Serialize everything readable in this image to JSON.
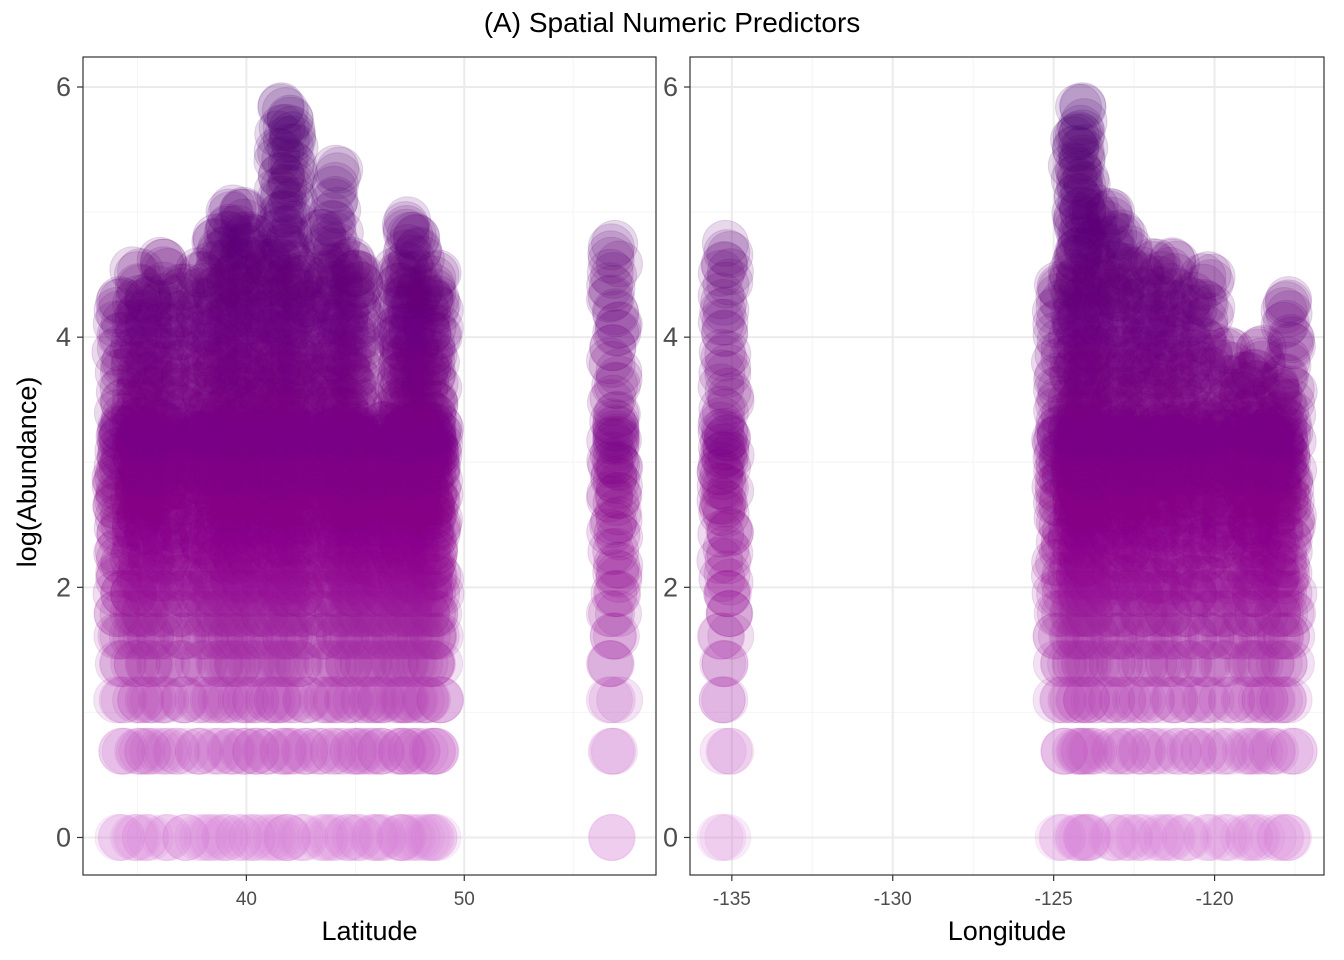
{
  "figure": {
    "title": "(A) Spatial Numeric Predictors",
    "ylabel": "log(Abundance)"
  },
  "colors": {
    "point_low": "#d67fd6",
    "point_mid": "#8b008b",
    "point_high": "#4b0070",
    "panel_border": "#333333",
    "grid_major": "#ebebeb",
    "grid_minor": "#f4f4f4",
    "tick_text": "#4d4d4d"
  },
  "chart_data": [
    {
      "type": "scatter",
      "title": "(A) Spatial Numeric Predictors",
      "xlabel": "Latitude",
      "ylabel": "log(Abundance)",
      "xlim": [
        32.5,
        58.8
      ],
      "ylim": [
        -0.3,
        6.24
      ],
      "x_ticks": [
        40,
        50
      ],
      "x_tick_labels": [
        "40",
        "50"
      ],
      "y_ticks": [
        0,
        2,
        4,
        6
      ],
      "y_tick_labels": [
        "0",
        "2",
        "4",
        "6"
      ],
      "grid": true,
      "point_alpha": 0.15,
      "color_by": "y",
      "groups": [
        {
          "x": 34.2,
          "ymax": 4.3
        },
        {
          "x": 35.0,
          "ymax": 4.5
        },
        {
          "x": 35.5,
          "ymax": 4.3
        },
        {
          "x": 36.2,
          "ymax": 4.6
        },
        {
          "x": 37.0,
          "ymax": 4.4
        },
        {
          "x": 38.0,
          "ymax": 4.5
        },
        {
          "x": 38.6,
          "ymax": 4.8
        },
        {
          "x": 39.2,
          "ymax": 5.0
        },
        {
          "x": 39.8,
          "ymax": 5.0
        },
        {
          "x": 40.3,
          "ymax": 4.8
        },
        {
          "x": 41.0,
          "ymax": 4.6
        },
        {
          "x": 41.6,
          "ymax": 5.85
        },
        {
          "x": 42.0,
          "ymax": 5.75
        },
        {
          "x": 42.6,
          "ymax": 4.5
        },
        {
          "x": 43.5,
          "ymax": 4.8
        },
        {
          "x": 44.1,
          "ymax": 5.35
        },
        {
          "x": 44.7,
          "ymax": 4.6
        },
        {
          "x": 45.2,
          "ymax": 4.5
        },
        {
          "x": 45.8,
          "ymax": 3.0
        },
        {
          "x": 46.3,
          "ymax": 3.3
        },
        {
          "x": 47.0,
          "ymax": 4.5
        },
        {
          "x": 47.3,
          "ymax": 4.9
        },
        {
          "x": 47.8,
          "ymax": 4.8
        },
        {
          "x": 48.4,
          "ymax": 4.3
        },
        {
          "x": 48.7,
          "ymax": 4.5
        },
        {
          "x": 56.9,
          "ymax": 4.75
        }
      ]
    },
    {
      "type": "scatter",
      "title": "",
      "xlabel": "Longitude",
      "ylabel": "log(Abundance)",
      "xlim": [
        -136.3,
        -116.6
      ],
      "ylim": [
        -0.3,
        6.24
      ],
      "x_ticks": [
        -135,
        -130,
        -125,
        -120
      ],
      "x_tick_labels": [
        "-135",
        "-130",
        "-125",
        "-120"
      ],
      "y_ticks": [
        0,
        2,
        4,
        6
      ],
      "y_tick_labels": [
        "0",
        "2",
        "4",
        "6"
      ],
      "grid": true,
      "point_alpha": 0.15,
      "color_by": "y",
      "groups": [
        {
          "x": -135.2,
          "ymax": 4.75
        },
        {
          "x": -124.8,
          "ymax": 4.4
        },
        {
          "x": -124.3,
          "ymax": 5.6
        },
        {
          "x": -124.1,
          "ymax": 5.85
        },
        {
          "x": -123.8,
          "ymax": 5.0
        },
        {
          "x": -123.2,
          "ymax": 5.0
        },
        {
          "x": -122.8,
          "ymax": 4.8
        },
        {
          "x": -122.3,
          "ymax": 4.5
        },
        {
          "x": -121.8,
          "ymax": 4.6
        },
        {
          "x": -121.3,
          "ymax": 4.6
        },
        {
          "x": -120.8,
          "ymax": 4.3
        },
        {
          "x": -120.2,
          "ymax": 4.5
        },
        {
          "x": -119.6,
          "ymax": 3.9
        },
        {
          "x": -119.0,
          "ymax": 3.7
        },
        {
          "x": -118.6,
          "ymax": 3.9
        },
        {
          "x": -118.1,
          "ymax": 3.6
        },
        {
          "x": -117.7,
          "ymax": 4.3
        }
      ]
    }
  ]
}
